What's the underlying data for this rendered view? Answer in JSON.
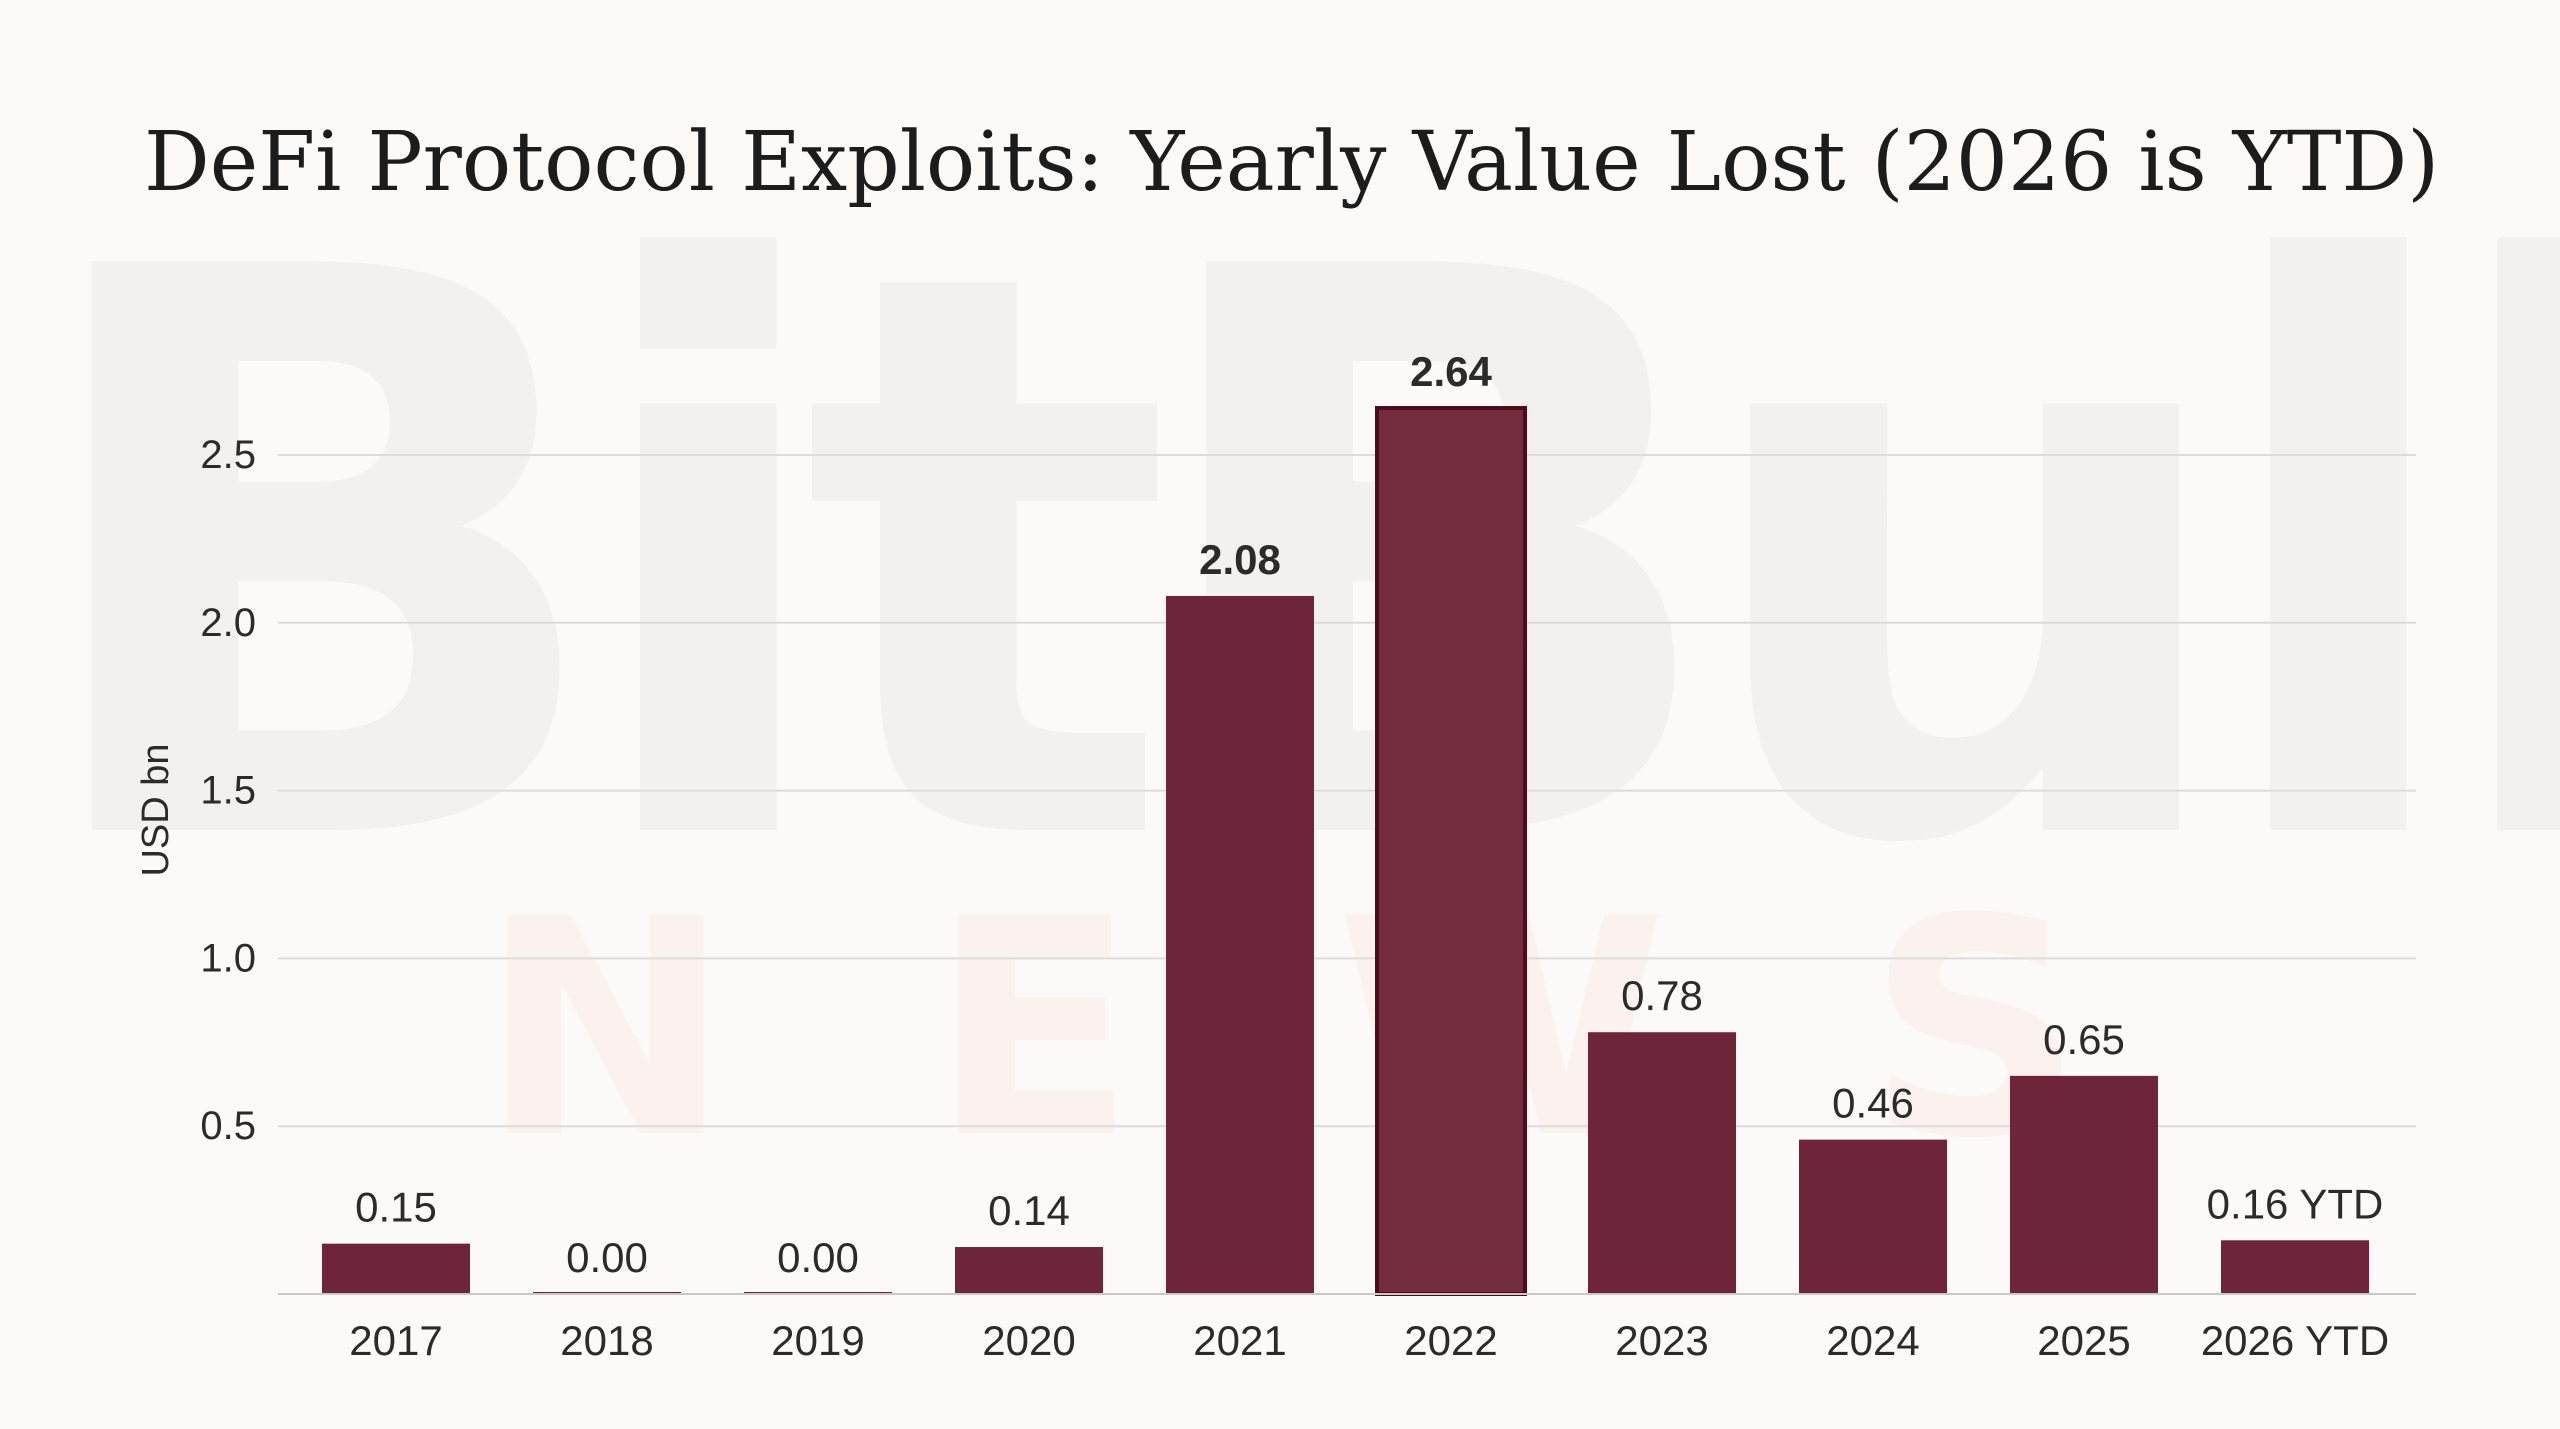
{
  "watermark": {
    "brand": "BitBull",
    "sub": "NEWS"
  },
  "chart_data": {
    "type": "bar",
    "title": "DeFi Protocol Exploits: Yearly Value Lost (2026 is YTD)",
    "xlabel": "",
    "ylabel": "USD bn",
    "ylim": [
      0,
      2.65
    ],
    "yticks": [
      0.5,
      1.0,
      1.5,
      2.0,
      2.5
    ],
    "ytick_labels": [
      "0.5",
      "1.0",
      "1.5",
      "2.0",
      "2.5"
    ],
    "grid": true,
    "categories": [
      "2017",
      "2018",
      "2019",
      "2020",
      "2021",
      "2022",
      "2023",
      "2024",
      "2025",
      "2026 YTD"
    ],
    "values": [
      0.15,
      0.0,
      0.0,
      0.14,
      2.08,
      2.64,
      0.78,
      0.46,
      0.65,
      0.16
    ],
    "data_labels": [
      "0.15",
      "0.00",
      "0.00",
      "0.14",
      "2.08",
      "2.64",
      "0.78",
      "0.46",
      "0.65",
      "0.16 YTD"
    ],
    "highlight_index": 5,
    "bold_label_indices": [
      4,
      5
    ],
    "colors": {
      "bar": "#6f2539",
      "bar_highlight": "#732c3e",
      "bar_highlight_border": "#4d0c1c",
      "label_highlight": "#6f2539",
      "text": "#2b2b2b",
      "grid": "#dcdcdc",
      "axis": "#c8c8c8"
    }
  }
}
